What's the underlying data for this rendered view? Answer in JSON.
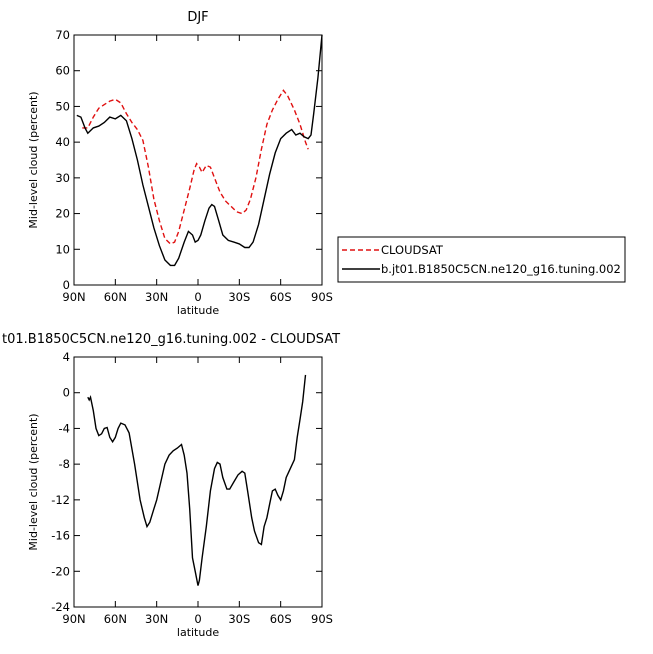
{
  "chart_data": [
    {
      "type": "line",
      "title": "DJF",
      "x_label": "latitude",
      "y_label": "Mid-level cloud (percent)",
      "xlim": [
        90,
        -90
      ],
      "ylim": [
        0,
        70
      ],
      "xticks": [
        {
          "value": 90,
          "label": "90N"
        },
        {
          "value": 60,
          "label": "60N"
        },
        {
          "value": 30,
          "label": "30N"
        },
        0,
        {
          "value": -30,
          "label": "30S"
        },
        {
          "value": -60,
          "label": "60S"
        },
        {
          "value": -90,
          "label": "90S"
        }
      ],
      "yticks": [
        0,
        10,
        20,
        30,
        40,
        50,
        60,
        70
      ],
      "legend": "outside-right",
      "series": [
        {
          "name": "CLOUDSAT",
          "color": "#e01010",
          "style": "dashed",
          "x": [
            84,
            80,
            76,
            72,
            68,
            64,
            60,
            56,
            52,
            48,
            44,
            40,
            36,
            32,
            28,
            24,
            20,
            17,
            14,
            10,
            6,
            3,
            1,
            -1,
            -3,
            -6,
            -9,
            -12,
            -16,
            -20,
            -24,
            -28,
            -32,
            -35,
            -38,
            -42,
            -46,
            -50,
            -54,
            -58,
            -62,
            -65,
            -70,
            -74,
            -78,
            -80
          ],
          "values": [
            44,
            44,
            47,
            49.5,
            50.5,
            51.5,
            52,
            51,
            48,
            45.5,
            43.5,
            40.5,
            33,
            24,
            18,
            13,
            11.5,
            12,
            15,
            21,
            27,
            32,
            34,
            33,
            31.5,
            33.5,
            33,
            30,
            26,
            23.5,
            22,
            20.5,
            20,
            21,
            24,
            30,
            38,
            45,
            49,
            52,
            54.5,
            53,
            49,
            45,
            40,
            38
          ]
        },
        {
          "name": "b.jt01.B1850C5CN.ne120_g16.tuning.002",
          "color": "#000000",
          "style": "solid",
          "x": [
            88,
            85,
            82,
            80,
            76,
            72,
            68,
            64,
            60,
            56,
            52,
            48,
            44,
            40,
            36,
            32,
            28,
            24,
            20,
            17,
            14,
            10,
            7,
            4,
            2,
            0,
            -2,
            -5,
            -8,
            -10,
            -12,
            -15,
            -18,
            -22,
            -26,
            -30,
            -34,
            -37,
            -40,
            -44,
            -48,
            -52,
            -56,
            -60,
            -64,
            -68,
            -71,
            -74,
            -77,
            -80,
            -82,
            -84,
            -87,
            -90
          ],
          "values": [
            47.5,
            47,
            44,
            42.5,
            44,
            44.5,
            45.5,
            47,
            46.5,
            47.5,
            46,
            41,
            35,
            28,
            22,
            16,
            11,
            7,
            5.5,
            5.5,
            7.5,
            12,
            15,
            14,
            12,
            12.5,
            14,
            18,
            21.5,
            22.5,
            22,
            18,
            14,
            12.5,
            12,
            11.5,
            10.5,
            10.5,
            12,
            17,
            24,
            31,
            37,
            41,
            42.5,
            43.5,
            42,
            42.5,
            41.5,
            41,
            42,
            48,
            58,
            70
          ]
        }
      ]
    },
    {
      "type": "line",
      "title": "t01.B1850C5CN.ne120_g16.tuning.002 - CLOUDSAT",
      "x_label": "latitude",
      "y_label": "Mid-level cloud (percent)",
      "xlim": [
        90,
        -90
      ],
      "ylim": [
        -24,
        4
      ],
      "xticks": [
        {
          "value": 90,
          "label": "90N"
        },
        {
          "value": 60,
          "label": "60N"
        },
        {
          "value": 30,
          "label": "30N"
        },
        0,
        {
          "value": -30,
          "label": "30S"
        },
        {
          "value": -60,
          "label": "60S"
        },
        {
          "value": -90,
          "label": "90S"
        }
      ],
      "yticks": [
        -24,
        -20,
        -16,
        -12,
        -8,
        -4,
        0,
        4
      ],
      "series": [
        {
          "color": "#000000",
          "style": "solid",
          "x": [
            80,
            79,
            78,
            76,
            74,
            72,
            70,
            68,
            66,
            64,
            62,
            60,
            58,
            56,
            53,
            50,
            46,
            42,
            39,
            37,
            35,
            32,
            30,
            27,
            24,
            21,
            18,
            15,
            12,
            10,
            8,
            6,
            4,
            2,
            0,
            -1,
            -3,
            -6,
            -9,
            -12,
            -14,
            -16,
            -18,
            -21,
            -23,
            -26,
            -29,
            -32,
            -34,
            -36,
            -39,
            -41,
            -44,
            -46,
            -48,
            -50,
            -52,
            -54,
            -56,
            -58,
            -60,
            -62,
            -64,
            -67,
            -70,
            -72,
            -74,
            -76,
            -78
          ],
          "values": [
            -0.5,
            -0.8,
            -0.5,
            -2,
            -4,
            -4.8,
            -4.6,
            -4,
            -3.9,
            -5,
            -5.5,
            -5,
            -4,
            -3.4,
            -3.6,
            -4.5,
            -8,
            -12,
            -14,
            -15,
            -14.5,
            -13,
            -12,
            -10,
            -8,
            -7,
            -6.5,
            -6.2,
            -5.8,
            -7,
            -9,
            -13,
            -18.5,
            -20,
            -21.6,
            -21,
            -18.5,
            -15,
            -11,
            -8.5,
            -7.8,
            -8,
            -9.5,
            -10.8,
            -10.8,
            -10,
            -9.2,
            -8.8,
            -9,
            -11,
            -14,
            -15.5,
            -16.8,
            -17,
            -15,
            -14,
            -12.5,
            -11,
            -10.8,
            -11.5,
            -12,
            -11,
            -9.5,
            -8.5,
            -7.5,
            -5,
            -3,
            -1,
            2
          ]
        }
      ]
    }
  ]
}
